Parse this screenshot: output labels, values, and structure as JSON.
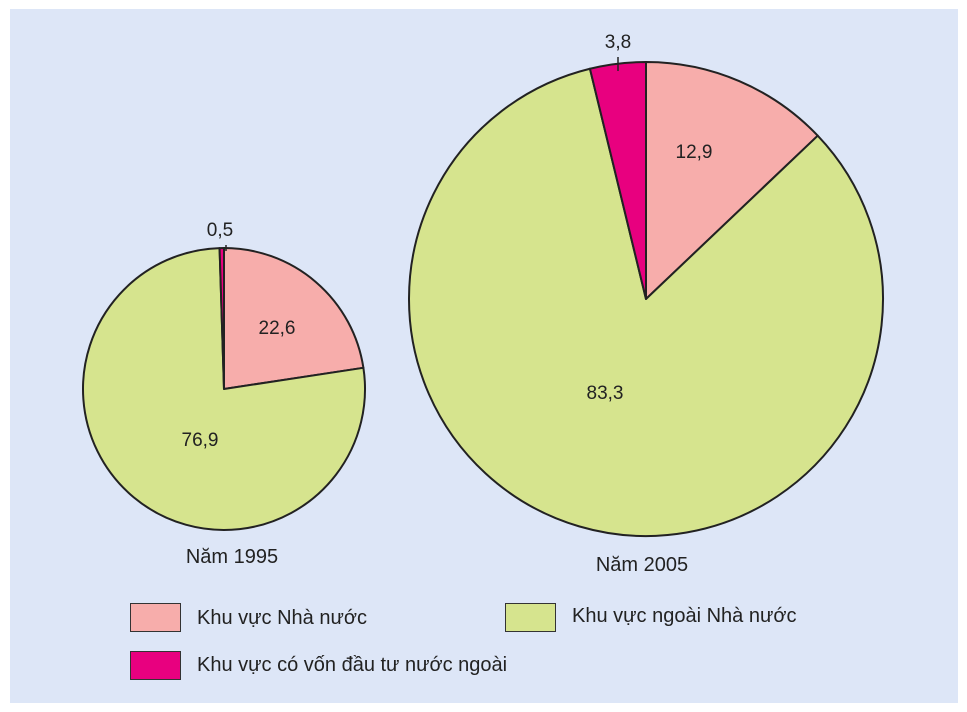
{
  "chart_data": [
    {
      "type": "pie",
      "title": "Năm 1995",
      "labels": [
        "Khu vực Nhà nước",
        "Khu vực ngoài Nhà nước",
        "Khu vực có vốn đầu tư nước ngoài"
      ],
      "values": [
        22.6,
        76.9,
        0.5
      ],
      "value_labels": [
        "22,6",
        "76,9",
        "0,5"
      ]
    },
    {
      "type": "pie",
      "title": "Năm 2005",
      "labels": [
        "Khu vực Nhà nước",
        "Khu vực ngoài Nhà nước",
        "Khu vực có vốn đầu tư nước ngoài"
      ],
      "values": [
        12.9,
        83.3,
        3.8
      ],
      "value_labels": [
        "12,9",
        "83,3",
        "3,8"
      ]
    }
  ],
  "legend": {
    "items": [
      {
        "label": "Khu vực Nhà nước",
        "color": "#f7adab"
      },
      {
        "label": "Khu vực ngoài Nhà nước",
        "color": "#d6e48e"
      },
      {
        "label": "Khu vực có vốn đầu tư nước ngoài",
        "color": "#e8007f"
      }
    ]
  },
  "colors": {
    "background": "#dde6f7",
    "outline": "#222222"
  }
}
